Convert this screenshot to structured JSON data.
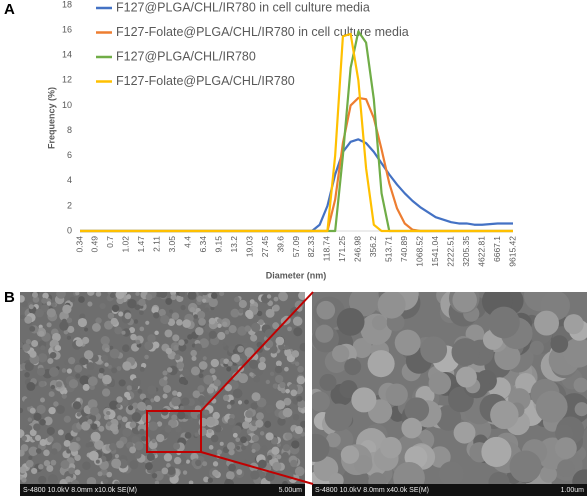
{
  "panel_a": "A",
  "panel_b": "B",
  "chart_data": {
    "type": "line",
    "xlabel": "Diameter (nm)",
    "ylabel": "Frequency (%)",
    "categories": [
      "0.34",
      null,
      "0.49",
      null,
      "0.7",
      null,
      "1.02",
      null,
      "1.47",
      null,
      "2.11",
      null,
      "3.05",
      null,
      "4.4",
      null,
      "6.34",
      null,
      "9.15",
      null,
      "13.2",
      null,
      "19.03",
      null,
      "27.45",
      null,
      "39.6",
      null,
      "57.09",
      null,
      "82.33",
      null,
      "118.74",
      null,
      "171.25",
      null,
      "246.98",
      null,
      "356.2",
      null,
      "513.71",
      null,
      "740.89",
      null,
      "1068.52",
      null,
      "1541.04",
      null,
      "2222.51",
      null,
      "3205.35",
      null,
      "4622.81",
      null,
      "6667.1",
      null,
      "9615.42"
    ],
    "ylim": [
      0,
      18
    ],
    "yticks": [
      0,
      2,
      4,
      6,
      8,
      10,
      12,
      14,
      16,
      18
    ],
    "legend": "top",
    "series": [
      {
        "name": "F127@PLGA/CHL/IR780 in cell culture media",
        "color": "#4472c4",
        "values": [
          0,
          0,
          0,
          0,
          0,
          0,
          0,
          0,
          0,
          0,
          0,
          0,
          0,
          0,
          0,
          0,
          0,
          0,
          0,
          0,
          0,
          0,
          0,
          0,
          0,
          0,
          0,
          0,
          0,
          0,
          0,
          0.5,
          2,
          4.5,
          6.3,
          7.1,
          7.3,
          7,
          6.3,
          5.4,
          4.5,
          3.7,
          3,
          2.4,
          1.9,
          1.5,
          1.1,
          0.9,
          0.7,
          0.6,
          0.6,
          0.5,
          0.5,
          0.55,
          0.6,
          0.6,
          0.6
        ]
      },
      {
        "name": "F127-Folate@PLGA/CHL/IR780 in cell culture media",
        "color": "#ed7d31",
        "values": [
          0,
          0,
          0,
          0,
          0,
          0,
          0,
          0,
          0,
          0,
          0,
          0,
          0,
          0,
          0,
          0,
          0,
          0,
          0,
          0,
          0,
          0,
          0,
          0,
          0,
          0,
          0,
          0,
          0,
          0,
          0,
          0,
          0,
          2.5,
          7,
          10,
          10.6,
          10.5,
          9,
          6.5,
          3.8,
          1.8,
          0.6,
          0.1,
          0,
          0,
          0,
          0,
          0,
          0,
          0,
          0,
          0,
          0,
          0,
          0,
          0
        ]
      },
      {
        "name": "F127@PLGA/CHL/IR780",
        "color": "#70ad47",
        "values": [
          0,
          0,
          0,
          0,
          0,
          0,
          0,
          0,
          0,
          0,
          0,
          0,
          0,
          0,
          0,
          0,
          0,
          0,
          0,
          0,
          0,
          0,
          0,
          0,
          0,
          0,
          0,
          0,
          0,
          0,
          0,
          0,
          0,
          0,
          6,
          13,
          15.9,
          15,
          10.5,
          3,
          0,
          0,
          0,
          0,
          0,
          0,
          0,
          0,
          0,
          0,
          0,
          0,
          0,
          0,
          0,
          0,
          0
        ]
      },
      {
        "name": "F127-Folate@PLGA/CHL/IR780",
        "color": "#ffc000",
        "values": [
          0,
          0,
          0,
          0,
          0,
          0,
          0,
          0,
          0,
          0,
          0,
          0,
          0,
          0,
          0,
          0,
          0,
          0,
          0,
          0,
          0,
          0,
          0,
          0,
          0,
          0,
          0,
          0,
          0,
          0,
          0,
          0,
          0,
          6,
          15.5,
          15.7,
          12,
          5,
          0.5,
          0,
          0,
          0,
          0,
          0,
          0,
          0,
          0,
          0,
          0,
          0,
          0,
          0,
          0,
          0,
          0,
          0,
          0
        ]
      }
    ]
  },
  "images": [
    {
      "caption": "S-4800 10.0kV 8.0mm x10.0k SE(M)",
      "scale": "5.00um"
    },
    {
      "caption": "S-4800 10.0kV 8.0mm x40.0k SE(M)",
      "scale": "1.00um"
    }
  ]
}
